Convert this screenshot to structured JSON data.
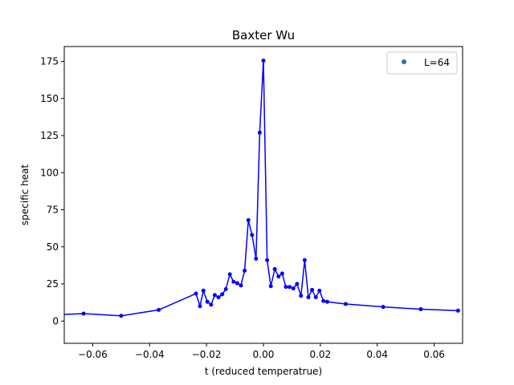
{
  "chart_data": {
    "type": "line",
    "title": "Baxter Wu",
    "xlabel": "t (reduced temperatrue)",
    "ylabel": "specific heat",
    "xlim": [
      -0.07,
      0.07
    ],
    "ylim": [
      -15,
      185
    ],
    "xticks": [
      -0.06,
      -0.04,
      -0.02,
      0.0,
      0.02,
      0.04,
      0.06
    ],
    "xtick_labels": [
      "−0.06",
      "−0.04",
      "−0.02",
      "0.00",
      "0.02",
      "0.04",
      "0.06"
    ],
    "yticks": [
      0,
      25,
      50,
      75,
      100,
      125,
      150,
      175
    ],
    "ytick_labels": [
      "0",
      "25",
      "50",
      "75",
      "100",
      "125",
      "150",
      "175"
    ],
    "grid": false,
    "legend": {
      "placement": "top-right",
      "marker_color": "#1f77b4"
    },
    "series": [
      {
        "name": "L=64",
        "color": "#0000ff",
        "x": [
          -0.0763,
          -0.0632,
          -0.05,
          -0.0368,
          -0.0237,
          -0.0223,
          -0.0211,
          -0.0197,
          -0.0184,
          -0.0171,
          -0.0158,
          -0.0145,
          -0.0132,
          -0.0118,
          -0.0105,
          -0.0092,
          -0.0079,
          -0.0066,
          -0.0053,
          -0.004,
          -0.0026,
          -0.0013,
          0.0,
          0.0013,
          0.0026,
          0.004,
          0.0053,
          0.0066,
          0.0079,
          0.0092,
          0.0105,
          0.0118,
          0.0132,
          0.0145,
          0.0158,
          0.0171,
          0.0184,
          0.0197,
          0.0211,
          0.0224,
          0.0289,
          0.0421,
          0.0553,
          0.0684
        ],
        "y": [
          4,
          5,
          3.5,
          7.5,
          18.5,
          10,
          20.5,
          13,
          11,
          17.5,
          16,
          18,
          21.5,
          31.5,
          26.5,
          25.5,
          24,
          34,
          68,
          58,
          42,
          127,
          175.5,
          41,
          23.5,
          35,
          30,
          32,
          23,
          23,
          22,
          25,
          17,
          41,
          16,
          21,
          16,
          20.5,
          13.5,
          13,
          11.5,
          9.5,
          8,
          7
        ]
      }
    ]
  }
}
